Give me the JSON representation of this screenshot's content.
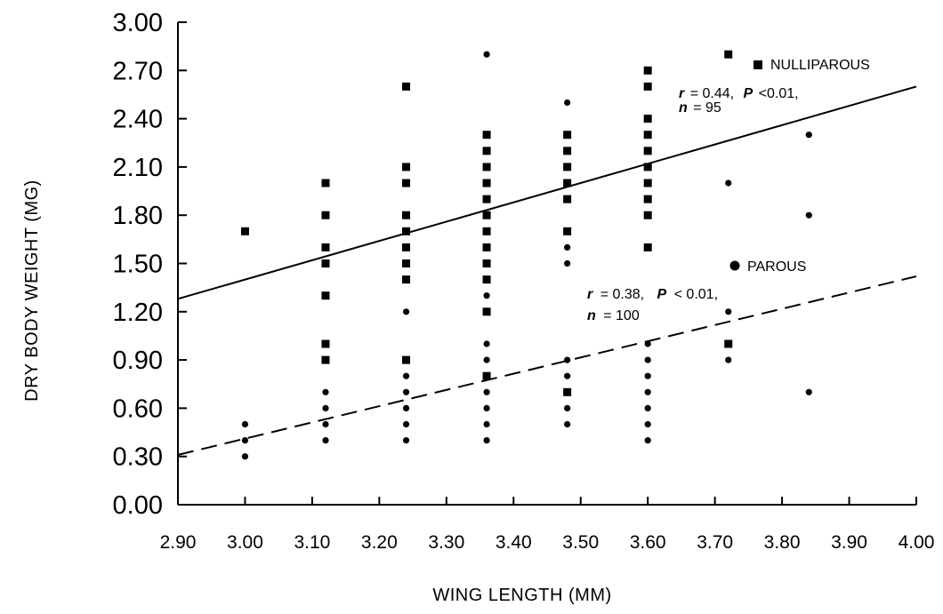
{
  "chart_data": {
    "type": "scatter",
    "title": "",
    "xlabel": "WING LENGTH (MM)",
    "ylabel": "DRY BODY WEIGHT (MG)",
    "xlim": [
      2.9,
      4.0
    ],
    "ylim": [
      0.0,
      3.0
    ],
    "x_ticks": [
      "2.90",
      "3.00",
      "3.10",
      "3.20",
      "3.30",
      "3.40",
      "3.50",
      "3.60",
      "3.70",
      "3.80",
      "3.90",
      "4.00"
    ],
    "y_ticks": [
      "0.00",
      "0.30",
      "0.60",
      "0.90",
      "1.20",
      "1.50",
      "1.80",
      "2.10",
      "2.40",
      "2.70",
      "3.00"
    ],
    "grid": false,
    "legend_position": "right",
    "series": [
      {
        "name": "NULLIPAROUS",
        "marker": "square",
        "line": "solid",
        "regression": {
          "r": "0.44",
          "P": "<0.01",
          "n": "95",
          "intercept_x": 2.9,
          "intercept_y": 1.28,
          "end_x": 4.0,
          "end_y": 2.6
        },
        "points": [
          {
            "x": 3.0,
            "y": 1.7
          },
          {
            "x": 3.12,
            "y": 2.0
          },
          {
            "x": 3.12,
            "y": 1.8
          },
          {
            "x": 3.12,
            "y": 1.6
          },
          {
            "x": 3.12,
            "y": 1.5
          },
          {
            "x": 3.12,
            "y": 1.3
          },
          {
            "x": 3.12,
            "y": 1.0
          },
          {
            "x": 3.12,
            "y": 0.9
          },
          {
            "x": 3.24,
            "y": 2.6
          },
          {
            "x": 3.24,
            "y": 2.1
          },
          {
            "x": 3.24,
            "y": 2.0
          },
          {
            "x": 3.24,
            "y": 1.8
          },
          {
            "x": 3.24,
            "y": 1.7
          },
          {
            "x": 3.24,
            "y": 1.6
          },
          {
            "x": 3.24,
            "y": 1.5
          },
          {
            "x": 3.24,
            "y": 1.4
          },
          {
            "x": 3.24,
            "y": 0.9
          },
          {
            "x": 3.36,
            "y": 2.3
          },
          {
            "x": 3.36,
            "y": 2.2
          },
          {
            "x": 3.36,
            "y": 2.1
          },
          {
            "x": 3.36,
            "y": 2.0
          },
          {
            "x": 3.36,
            "y": 1.9
          },
          {
            "x": 3.36,
            "y": 1.8
          },
          {
            "x": 3.36,
            "y": 1.7
          },
          {
            "x": 3.36,
            "y": 1.6
          },
          {
            "x": 3.36,
            "y": 1.5
          },
          {
            "x": 3.36,
            "y": 1.4
          },
          {
            "x": 3.36,
            "y": 1.2
          },
          {
            "x": 3.36,
            "y": 0.8
          },
          {
            "x": 3.48,
            "y": 2.3
          },
          {
            "x": 3.48,
            "y": 2.2
          },
          {
            "x": 3.48,
            "y": 2.1
          },
          {
            "x": 3.48,
            "y": 2.0
          },
          {
            "x": 3.48,
            "y": 1.9
          },
          {
            "x": 3.48,
            "y": 1.7
          },
          {
            "x": 3.48,
            "y": 0.7
          },
          {
            "x": 3.6,
            "y": 2.7
          },
          {
            "x": 3.6,
            "y": 2.6
          },
          {
            "x": 3.6,
            "y": 2.4
          },
          {
            "x": 3.6,
            "y": 2.3
          },
          {
            "x": 3.6,
            "y": 2.2
          },
          {
            "x": 3.6,
            "y": 2.1
          },
          {
            "x": 3.6,
            "y": 2.0
          },
          {
            "x": 3.6,
            "y": 1.9
          },
          {
            "x": 3.6,
            "y": 1.8
          },
          {
            "x": 3.6,
            "y": 1.6
          },
          {
            "x": 3.72,
            "y": 2.8
          },
          {
            "x": 3.72,
            "y": 1.0
          }
        ]
      },
      {
        "name": "PAROUS",
        "marker": "circle",
        "line": "dashed",
        "regression": {
          "r": "0.38",
          "P": "< 0.01",
          "n": "100",
          "intercept_x": 2.9,
          "intercept_y": 0.31,
          "end_x": 4.0,
          "end_y": 1.42
        },
        "points": [
          {
            "x": 3.0,
            "y": 0.5
          },
          {
            "x": 3.0,
            "y": 0.4
          },
          {
            "x": 3.0,
            "y": 0.3
          },
          {
            "x": 3.12,
            "y": 0.7
          },
          {
            "x": 3.12,
            "y": 0.6
          },
          {
            "x": 3.12,
            "y": 0.5
          },
          {
            "x": 3.12,
            "y": 0.4
          },
          {
            "x": 3.24,
            "y": 1.2
          },
          {
            "x": 3.24,
            "y": 0.8
          },
          {
            "x": 3.24,
            "y": 0.7
          },
          {
            "x": 3.24,
            "y": 0.6
          },
          {
            "x": 3.24,
            "y": 0.5
          },
          {
            "x": 3.24,
            "y": 0.4
          },
          {
            "x": 3.36,
            "y": 2.8
          },
          {
            "x": 3.36,
            "y": 1.3
          },
          {
            "x": 3.36,
            "y": 1.0
          },
          {
            "x": 3.36,
            "y": 0.9
          },
          {
            "x": 3.36,
            "y": 0.8
          },
          {
            "x": 3.36,
            "y": 0.7
          },
          {
            "x": 3.36,
            "y": 0.6
          },
          {
            "x": 3.36,
            "y": 0.5
          },
          {
            "x": 3.36,
            "y": 0.4
          },
          {
            "x": 3.48,
            "y": 2.5
          },
          {
            "x": 3.48,
            "y": 1.6
          },
          {
            "x": 3.48,
            "y": 1.5
          },
          {
            "x": 3.48,
            "y": 0.9
          },
          {
            "x": 3.48,
            "y": 0.8
          },
          {
            "x": 3.48,
            "y": 0.6
          },
          {
            "x": 3.48,
            "y": 0.5
          },
          {
            "x": 3.6,
            "y": 1.0
          },
          {
            "x": 3.6,
            "y": 0.9
          },
          {
            "x": 3.6,
            "y": 0.8
          },
          {
            "x": 3.6,
            "y": 0.7
          },
          {
            "x": 3.6,
            "y": 0.6
          },
          {
            "x": 3.6,
            "y": 0.5
          },
          {
            "x": 3.6,
            "y": 0.4
          },
          {
            "x": 3.72,
            "y": 2.0
          },
          {
            "x": 3.72,
            "y": 1.2
          },
          {
            "x": 3.72,
            "y": 0.9
          },
          {
            "x": 3.84,
            "y": 2.3
          },
          {
            "x": 3.84,
            "y": 1.8
          },
          {
            "x": 3.84,
            "y": 0.7
          }
        ]
      }
    ],
    "annotations": {
      "nulliparous": {
        "r_label": "r",
        "r_value": "= 0.44,",
        "p_label": "P",
        "p_value": "<0.01,",
        "n_label": "n",
        "n_value": "= 95"
      },
      "parous": {
        "r_label": "r",
        "r_value": "= 0.38,",
        "p_label": "P",
        "p_value": "< 0.01,",
        "n_label": "n",
        "n_value": "= 100"
      }
    }
  }
}
